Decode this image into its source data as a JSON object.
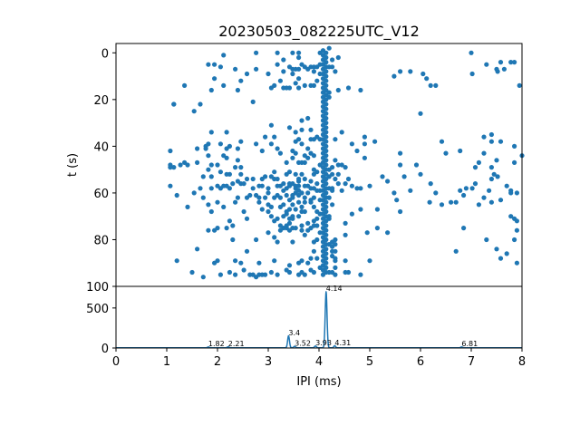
{
  "chart_data": [
    {
      "type": "scatter",
      "title": "20230503_082225UTC_V12",
      "xlabel": "",
      "ylabel": "t (s)",
      "xlim": [
        0,
        8
      ],
      "ylim": [
        100,
        -4
      ],
      "y_inverted": true,
      "yticks": [
        "0",
        "20",
        "40",
        "60",
        "80",
        "100"
      ],
      "color": "#1f77b4",
      "points_by_column": [
        {
          "x": 1.07,
          "y": [
            48,
            42,
            49,
            57
          ]
        },
        {
          "x": 1.14,
          "y": [
            22,
            22,
            49
          ]
        },
        {
          "x": 1.2,
          "y": [
            89,
            61
          ]
        },
        {
          "x": 1.27,
          "y": [
            48
          ]
        },
        {
          "x": 1.35,
          "y": [
            14,
            47
          ]
        },
        {
          "x": 1.41,
          "y": [
            66,
            48
          ]
        },
        {
          "x": 1.5,
          "y": [
            94
          ]
        },
        {
          "x": 1.54,
          "y": [
            25,
            60
          ]
        },
        {
          "x": 1.6,
          "y": [
            41,
            84,
            47
          ]
        },
        {
          "x": 1.66,
          "y": [
            22,
            58
          ]
        },
        {
          "x": 1.72,
          "y": [
            53,
            62,
            96
          ]
        },
        {
          "x": 1.77,
          "y": [
            40,
            41
          ]
        },
        {
          "x": 1.82,
          "y": [
            5,
            39,
            44,
            50,
            65,
            76
          ]
        },
        {
          "x": 1.88,
          "y": [
            16,
            34,
            48,
            53,
            58,
            68
          ]
        },
        {
          "x": 1.94,
          "y": [
            5,
            11,
            76,
            90
          ]
        },
        {
          "x": 2.0,
          "y": [
            48,
            57,
            64,
            75,
            89
          ]
        },
        {
          "x": 2.06,
          "y": [
            6,
            39,
            51,
            58,
            95
          ]
        },
        {
          "x": 2.12,
          "y": [
            1,
            14,
            44,
            57,
            66
          ]
        },
        {
          "x": 2.18,
          "y": [
            34,
            41,
            45,
            52,
            57,
            75
          ]
        },
        {
          "x": 2.24,
          "y": [
            40,
            52,
            58,
            72,
            94
          ]
        },
        {
          "x": 2.3,
          "y": [
            56,
            74,
            80
          ]
        },
        {
          "x": 2.35,
          "y": [
            7,
            49,
            64,
            89,
            95
          ]
        },
        {
          "x": 2.4,
          "y": [
            16,
            41,
            46,
            55,
            62
          ]
        },
        {
          "x": 2.46,
          "y": [
            12,
            38,
            49,
            52,
            56,
            90
          ]
        },
        {
          "x": 2.52,
          "y": [
            56,
            68,
            93
          ]
        },
        {
          "x": 2.58,
          "y": [
            9,
            54,
            62,
            71,
            85
          ]
        },
        {
          "x": 2.64,
          "y": [
            61,
            95
          ]
        },
        {
          "x": 2.7,
          "y": [
            21,
            54,
            58,
            95
          ]
        },
        {
          "x": 2.76,
          "y": [
            0,
            7,
            39,
            61,
            80,
            96
          ]
        },
        {
          "x": 2.82,
          "y": [
            57,
            62,
            64,
            90,
            95
          ]
        },
        {
          "x": 2.88,
          "y": [
            42,
            54,
            57,
            67,
            95
          ]
        },
        {
          "x": 2.94,
          "y": [
            36,
            53,
            62,
            95
          ]
        },
        {
          "x": 3.0,
          "y": [
            9,
            58,
            60,
            65,
            68,
            77
          ]
        },
        {
          "x": 3.06,
          "y": [
            15,
            31,
            39,
            53,
            66,
            70,
            94
          ]
        },
        {
          "x": 3.12,
          "y": [
            14,
            36,
            51,
            54,
            62,
            72,
            79,
            89
          ]
        },
        {
          "x": 3.18,
          "y": [
            0,
            5,
            41,
            54,
            57,
            61,
            71,
            81,
            95
          ]
        },
        {
          "x": 3.24,
          "y": [
            12,
            43,
            57,
            62,
            66,
            74,
            76
          ]
        },
        {
          "x": 3.3,
          "y": [
            3,
            8,
            15,
            56,
            59,
            65,
            70,
            75
          ]
        },
        {
          "x": 3.36,
          "y": [
            15,
            47,
            52,
            58,
            61,
            68,
            69,
            74,
            75,
            93
          ]
        },
        {
          "x": 3.42,
          "y": [
            6,
            15,
            32,
            51,
            56,
            57,
            63,
            67,
            71,
            73,
            76,
            91,
            94
          ]
        },
        {
          "x": 3.48,
          "y": [
            0,
            7,
            9,
            42,
            45,
            56,
            61,
            62,
            65,
            70,
            71,
            75,
            81
          ]
        },
        {
          "x": 3.54,
          "y": [
            7,
            13,
            34,
            38,
            43,
            52,
            57,
            58,
            60,
            67,
            75
          ]
        },
        {
          "x": 3.6,
          "y": [
            0,
            2,
            7,
            11,
            15,
            37,
            47,
            54,
            55,
            57,
            59,
            61,
            64,
            70,
            90,
            95
          ]
        },
        {
          "x": 3.66,
          "y": [
            5,
            29,
            33,
            39,
            47,
            52,
            60,
            66,
            68,
            74,
            76,
            89,
            94
          ]
        },
        {
          "x": 3.72,
          "y": [
            6,
            14,
            44,
            47,
            54,
            57,
            62,
            64,
            68,
            78,
            95
          ]
        },
        {
          "x": 3.78,
          "y": [
            7,
            28,
            41,
            45,
            57,
            60,
            73,
            76,
            90
          ]
        },
        {
          "x": 3.84,
          "y": [
            6,
            14,
            33,
            37,
            43,
            55,
            58,
            63,
            64,
            75,
            88,
            93
          ]
        },
        {
          "x": 3.9,
          "y": [
            6,
            8,
            14,
            37,
            44,
            50,
            52,
            58,
            62,
            66,
            72,
            74,
            81,
            85,
            94
          ]
        },
        {
          "x": 3.96,
          "y": [
            6,
            12,
            36,
            51,
            56,
            59,
            68,
            71,
            74,
            80,
            88
          ]
        },
        {
          "x": 4.02,
          "y": [
            0,
            5,
            9,
            37,
            48,
            59,
            63,
            69,
            77,
            92
          ]
        },
        {
          "x": 4.08,
          "y": [
            -1,
            1,
            3,
            5,
            7,
            9,
            11,
            13,
            15,
            17,
            19,
            21,
            23,
            25,
            27,
            29,
            31,
            33,
            35,
            37,
            39,
            41,
            43,
            45,
            47,
            49,
            51,
            53,
            55,
            57,
            59,
            61,
            63,
            65,
            67,
            69,
            71,
            73,
            75,
            77,
            79,
            81,
            83,
            85,
            87,
            89,
            91,
            93,
            95
          ]
        },
        {
          "x": 4.14,
          "y": [
            0,
            2,
            4,
            6,
            8,
            10,
            12,
            14,
            16,
            18,
            20,
            22,
            24,
            26,
            28,
            30,
            32,
            34,
            36,
            38,
            40,
            42,
            44,
            46,
            48,
            50,
            52,
            54,
            56,
            58,
            60,
            62,
            64,
            66,
            68,
            70,
            72,
            74,
            76,
            78,
            80,
            82,
            84,
            86,
            88,
            90,
            92,
            94
          ]
        },
        {
          "x": 4.2,
          "y": [
            -2,
            6,
            17,
            19,
            50,
            53,
            58,
            62,
            70,
            71,
            82,
            94
          ]
        },
        {
          "x": 4.26,
          "y": [
            3,
            6,
            49,
            52,
            58,
            59,
            65,
            81,
            83,
            85,
            87,
            94
          ]
        },
        {
          "x": 4.32,
          "y": [
            8,
            37,
            46,
            54,
            80,
            82,
            85,
            88,
            89,
            92,
            95
          ]
        },
        {
          "x": 4.38,
          "y": [
            2,
            16,
            48,
            52,
            56
          ]
        },
        {
          "x": 4.45,
          "y": [
            34,
            48,
            59
          ]
        },
        {
          "x": 4.52,
          "y": [
            49,
            56,
            73,
            78,
            89,
            94
          ]
        },
        {
          "x": 4.58,
          "y": [
            15,
            54,
            94
          ]
        },
        {
          "x": 4.65,
          "y": [
            39,
            57,
            69
          ]
        },
        {
          "x": 4.75,
          "y": [
            42,
            58
          ]
        },
        {
          "x": 4.82,
          "y": [
            16,
            58,
            67,
            95
          ]
        },
        {
          "x": 4.9,
          "y": [
            36,
            39,
            45
          ]
        },
        {
          "x": 4.95,
          "y": [
            77
          ]
        },
        {
          "x": 5.0,
          "y": [
            57,
            89
          ]
        },
        {
          "x": 5.1,
          "y": [
            38
          ]
        },
        {
          "x": 5.15,
          "y": [
            67,
            75
          ]
        },
        {
          "x": 5.25,
          "y": [
            53
          ]
        },
        {
          "x": 5.35,
          "y": [
            55,
            77
          ]
        },
        {
          "x": 5.48,
          "y": [
            10,
            60
          ]
        },
        {
          "x": 5.53,
          "y": [
            63
          ]
        },
        {
          "x": 5.6,
          "y": [
            8,
            43,
            48,
            68
          ]
        },
        {
          "x": 5.68,
          "y": [
            53
          ]
        },
        {
          "x": 5.8,
          "y": [
            8,
            59
          ]
        },
        {
          "x": 5.92,
          "y": [
            48
          ]
        },
        {
          "x": 6.0,
          "y": [
            26,
            52
          ]
        },
        {
          "x": 6.05,
          "y": [
            9
          ]
        },
        {
          "x": 6.12,
          "y": [
            11
          ]
        },
        {
          "x": 6.18,
          "y": [
            64
          ]
        },
        {
          "x": 6.2,
          "y": [
            14,
            56
          ]
        },
        {
          "x": 6.3,
          "y": [
            14,
            60
          ]
        },
        {
          "x": 6.42,
          "y": [
            38,
            65
          ]
        },
        {
          "x": 6.5,
          "y": [
            43
          ]
        },
        {
          "x": 6.6,
          "y": [
            64
          ]
        },
        {
          "x": 6.7,
          "y": [
            64,
            85
          ]
        },
        {
          "x": 6.78,
          "y": [
            42,
            59
          ]
        },
        {
          "x": 6.85,
          "y": [
            61,
            75
          ]
        },
        {
          "x": 6.9,
          "y": [
            58
          ]
        },
        {
          "x": 7.0,
          "y": [
            0
          ]
        },
        {
          "x": 7.02,
          "y": [
            9,
            58
          ]
        },
        {
          "x": 7.08,
          "y": [
            49,
            56
          ]
        },
        {
          "x": 7.15,
          "y": [
            47,
            65
          ]
        },
        {
          "x": 7.25,
          "y": [
            36,
            43,
            62
          ]
        },
        {
          "x": 7.3,
          "y": [
            5,
            80
          ]
        },
        {
          "x": 7.35,
          "y": [
            59
          ]
        },
        {
          "x": 7.4,
          "y": [
            35,
            38,
            49,
            54,
            64
          ]
        },
        {
          "x": 7.45,
          "y": [
            52
          ]
        },
        {
          "x": 7.5,
          "y": [
            7,
            46,
            84
          ]
        },
        {
          "x": 7.52,
          "y": [
            8,
            53
          ]
        },
        {
          "x": 7.58,
          "y": [
            4,
            38,
            63,
            88
          ]
        },
        {
          "x": 7.65,
          "y": [
            7
          ]
        },
        {
          "x": 7.7,
          "y": [
            57,
            86
          ]
        },
        {
          "x": 7.78,
          "y": [
            4,
            59,
            60,
            70
          ]
        },
        {
          "x": 7.85,
          "y": [
            4,
            40,
            47,
            71,
            80
          ]
        },
        {
          "x": 7.9,
          "y": [
            60,
            72,
            76,
            90
          ]
        },
        {
          "x": 7.95,
          "y": [
            14
          ]
        },
        {
          "x": 8.0,
          "y": [
            44
          ]
        }
      ]
    },
    {
      "type": "line",
      "xlabel": "IPI (ms)",
      "ylabel": "",
      "xlim": [
        0,
        8
      ],
      "ylim": [
        0,
        770
      ],
      "xticks": [
        "0",
        "1",
        "2",
        "3",
        "4",
        "5",
        "6",
        "7",
        "8"
      ],
      "yticks": [
        "0",
        "500"
      ],
      "color": "#1f77b4",
      "baseline": 3,
      "peaks": [
        {
          "x": 1.82,
          "height": 10,
          "label": "1.82"
        },
        {
          "x": 2.21,
          "height": 12,
          "label": "2.21"
        },
        {
          "x": 3.4,
          "height": 150,
          "label": "3.4"
        },
        {
          "x": 3.52,
          "height": 18,
          "label": "3.52"
        },
        {
          "x": 3.93,
          "height": 22,
          "label": "3.93"
        },
        {
          "x": 4.14,
          "height": 700,
          "label": "4.14"
        },
        {
          "x": 4.31,
          "height": 25,
          "label": "4.31"
        },
        {
          "x": 6.81,
          "height": 10,
          "label": "6.81"
        }
      ]
    }
  ]
}
